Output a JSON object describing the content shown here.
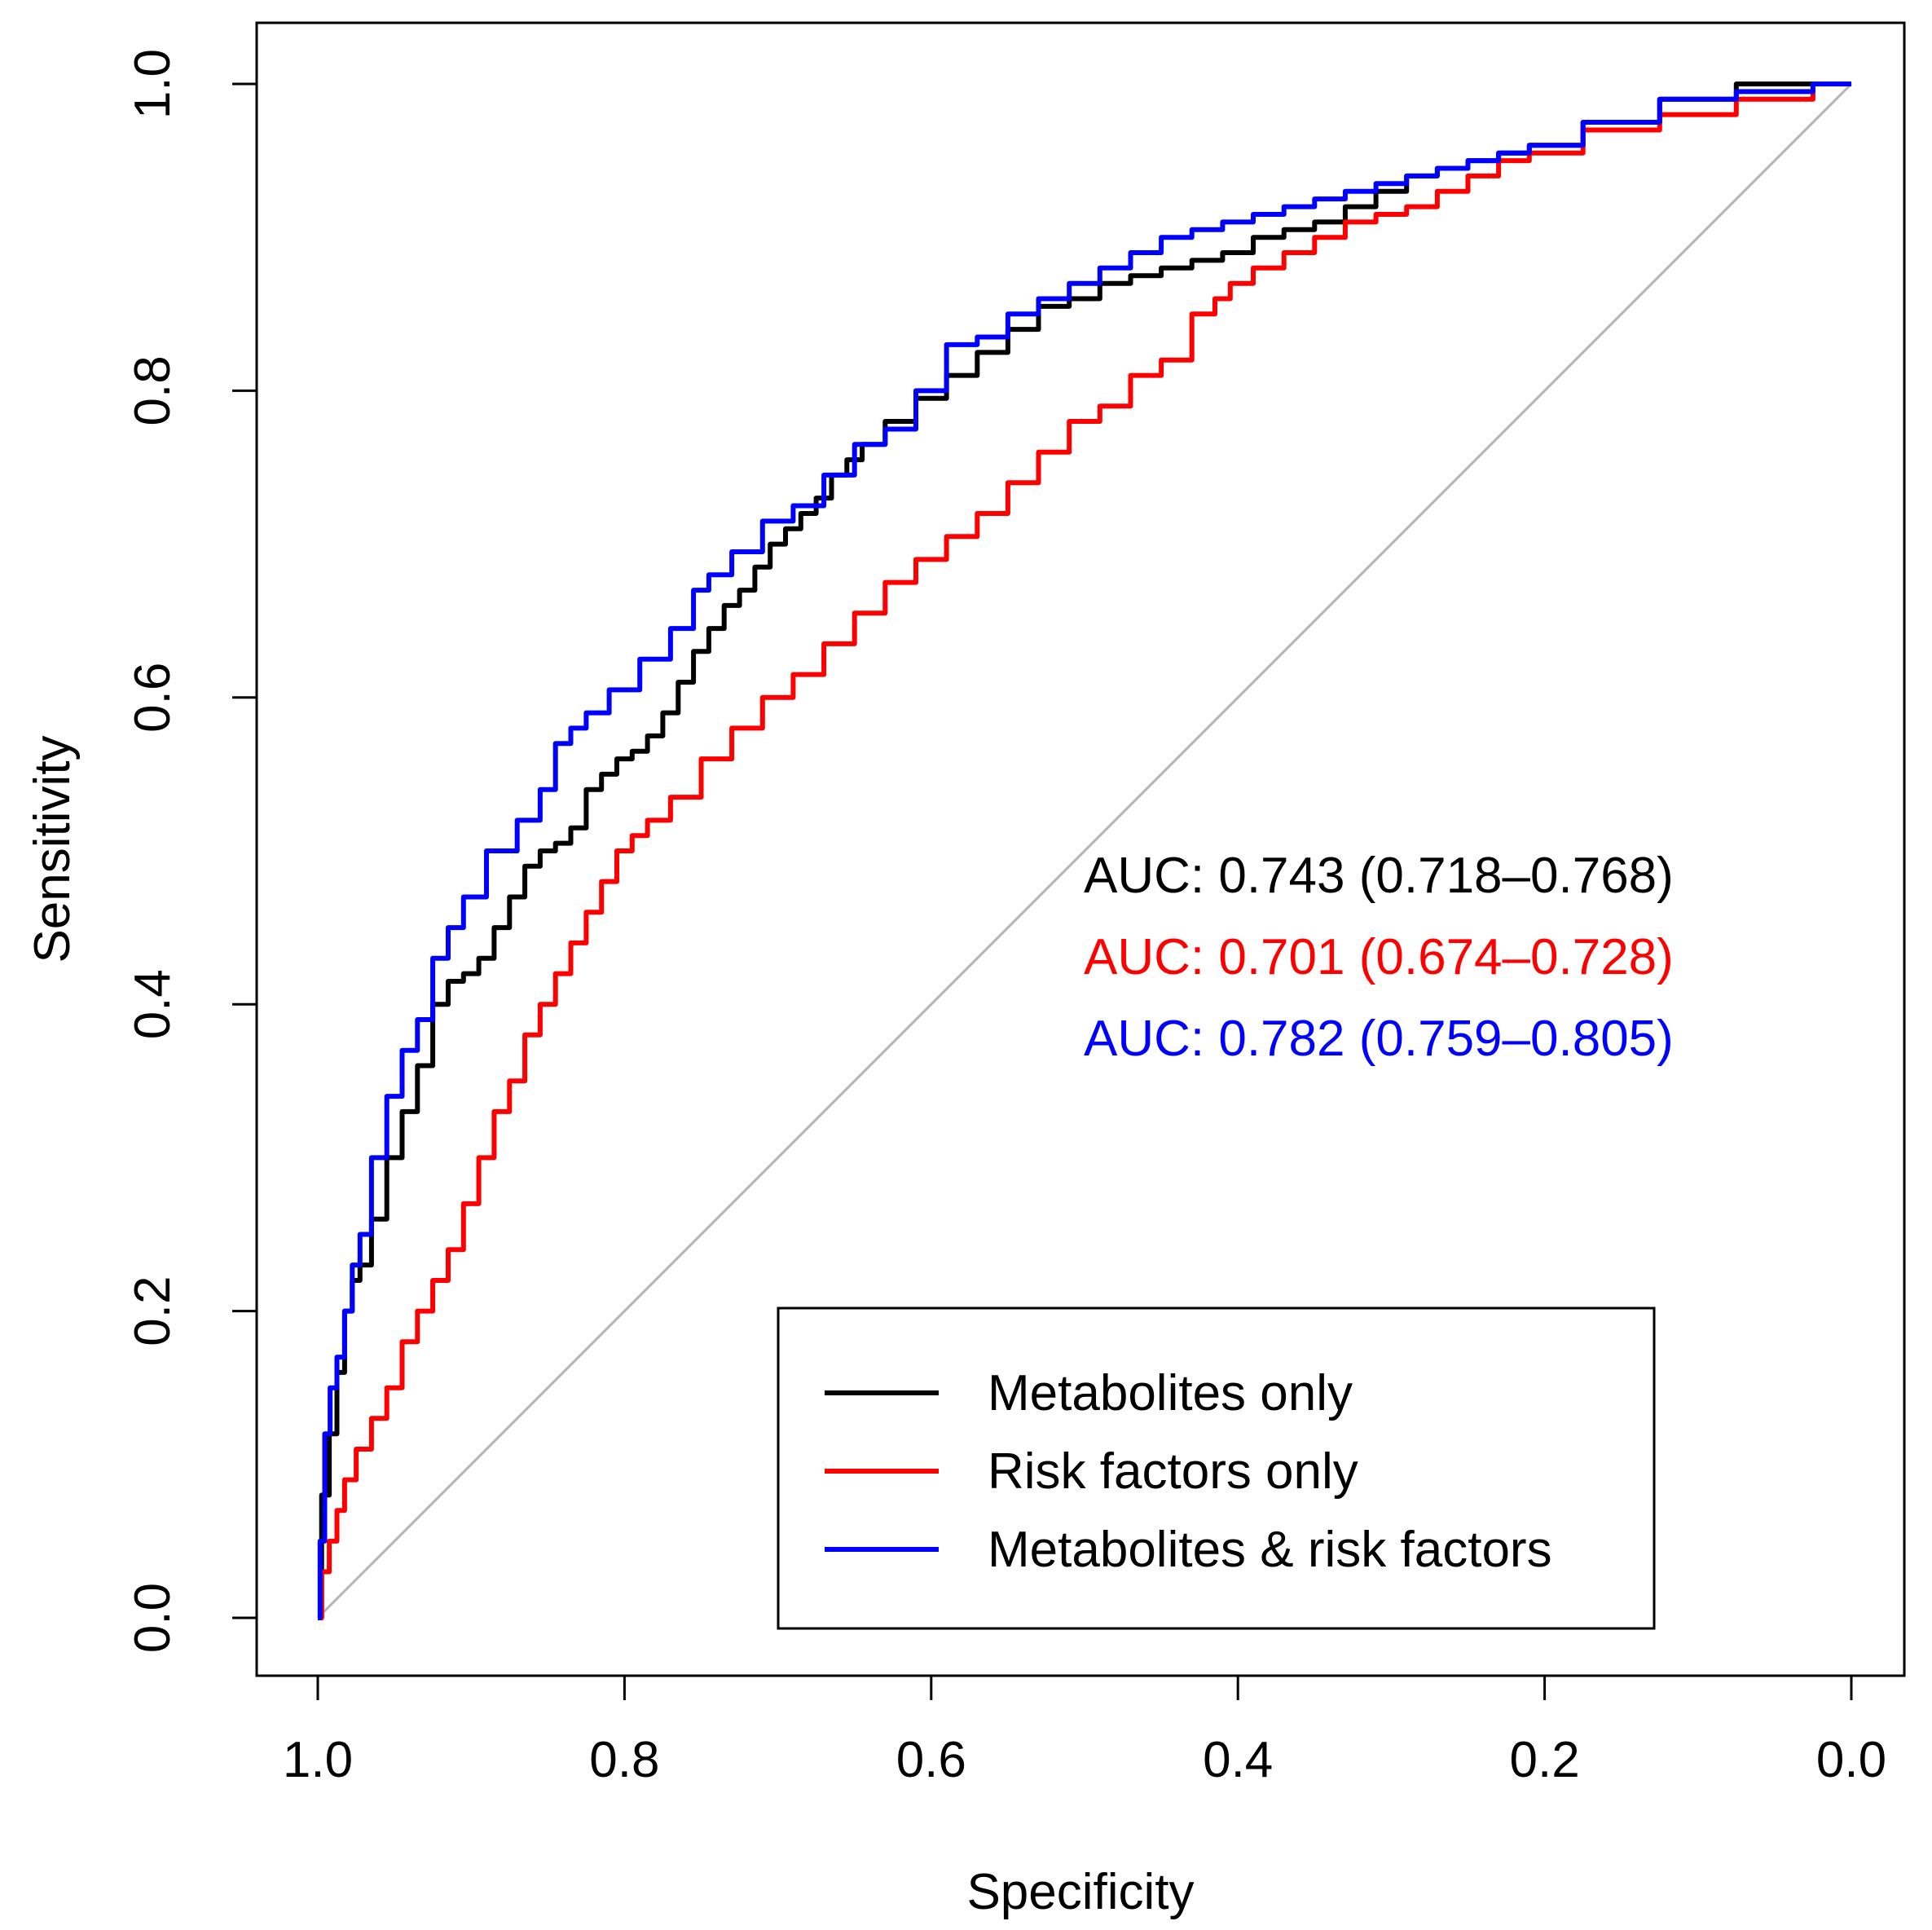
{
  "chart_data": {
    "type": "line",
    "title": "",
    "xlabel": "Specificity",
    "ylabel": "Sensitivity",
    "x_reversed": true,
    "xlim": [
      1.0,
      0.0
    ],
    "ylim": [
      0.0,
      1.0
    ],
    "x_ticks": [
      "1.0",
      "0.8",
      "0.6",
      "0.4",
      "0.2",
      "0.0"
    ],
    "x_tick_values": [
      1.0,
      0.8,
      0.6,
      0.4,
      0.2,
      0.0
    ],
    "y_ticks": [
      "0.0",
      "0.2",
      "0.4",
      "0.6",
      "0.8",
      "1.0"
    ],
    "y_tick_values": [
      0.0,
      0.2,
      0.4,
      0.6,
      0.8,
      1.0
    ],
    "grid": false,
    "legend_position": "bottom-right",
    "reference_line": {
      "from": [
        1.0,
        0.0
      ],
      "to": [
        0.0,
        1.0
      ],
      "color": "#b4b4b4"
    },
    "series": [
      {
        "name": "Metabolites only",
        "color": "#000000",
        "auc_text": "AUC: 0.743 (0.718–0.768)",
        "specificity": [
          1.0,
          0.995,
          0.99,
          0.985,
          0.98,
          0.975,
          0.97,
          0.96,
          0.95,
          0.94,
          0.93,
          0.92,
          0.91,
          0.9,
          0.89,
          0.88,
          0.87,
          0.86,
          0.85,
          0.84,
          0.83,
          0.82,
          0.81,
          0.8,
          0.79,
          0.78,
          0.77,
          0.76,
          0.75,
          0.74,
          0.73,
          0.72,
          0.71,
          0.7,
          0.69,
          0.68,
          0.67,
          0.66,
          0.65,
          0.64,
          0.62,
          0.6,
          0.58,
          0.56,
          0.54,
          0.52,
          0.5,
          0.48,
          0.46,
          0.44,
          0.42,
          0.4,
          0.38,
          0.36,
          0.34,
          0.32,
          0.3,
          0.28,
          0.26,
          0.24,
          0.22,
          0.2,
          0.15,
          0.1,
          0.05,
          0.0
        ],
        "sensitivity": [
          0.0,
          0.08,
          0.12,
          0.16,
          0.2,
          0.22,
          0.23,
          0.26,
          0.3,
          0.33,
          0.36,
          0.4,
          0.415,
          0.42,
          0.43,
          0.45,
          0.47,
          0.49,
          0.5,
          0.505,
          0.515,
          0.54,
          0.55,
          0.56,
          0.565,
          0.575,
          0.59,
          0.61,
          0.63,
          0.645,
          0.66,
          0.67,
          0.685,
          0.7,
          0.71,
          0.72,
          0.73,
          0.745,
          0.755,
          0.765,
          0.78,
          0.795,
          0.81,
          0.825,
          0.84,
          0.855,
          0.86,
          0.87,
          0.875,
          0.88,
          0.885,
          0.89,
          0.9,
          0.905,
          0.91,
          0.92,
          0.93,
          0.94,
          0.945,
          0.95,
          0.955,
          0.96,
          0.975,
          0.99,
          1.0,
          1.0
        ]
      },
      {
        "name": "Risk factors only",
        "color": "#ff0000",
        "auc_text": "AUC: 0.701 (0.674–0.728)",
        "specificity": [
          1.0,
          0.995,
          0.99,
          0.985,
          0.98,
          0.97,
          0.96,
          0.95,
          0.94,
          0.93,
          0.92,
          0.91,
          0.9,
          0.89,
          0.88,
          0.87,
          0.86,
          0.85,
          0.84,
          0.83,
          0.82,
          0.81,
          0.8,
          0.79,
          0.78,
          0.76,
          0.74,
          0.72,
          0.7,
          0.68,
          0.66,
          0.64,
          0.62,
          0.6,
          0.58,
          0.56,
          0.54,
          0.52,
          0.5,
          0.48,
          0.46,
          0.44,
          0.42,
          0.41,
          0.4,
          0.38,
          0.36,
          0.34,
          0.32,
          0.3,
          0.28,
          0.26,
          0.24,
          0.22,
          0.2,
          0.15,
          0.1,
          0.05,
          0.0
        ],
        "sensitivity": [
          0.0,
          0.03,
          0.05,
          0.07,
          0.09,
          0.11,
          0.13,
          0.15,
          0.18,
          0.2,
          0.22,
          0.24,
          0.27,
          0.3,
          0.33,
          0.35,
          0.38,
          0.4,
          0.42,
          0.44,
          0.46,
          0.48,
          0.5,
          0.51,
          0.52,
          0.535,
          0.56,
          0.58,
          0.6,
          0.615,
          0.635,
          0.655,
          0.675,
          0.69,
          0.705,
          0.72,
          0.74,
          0.76,
          0.78,
          0.79,
          0.81,
          0.82,
          0.85,
          0.86,
          0.87,
          0.88,
          0.89,
          0.9,
          0.91,
          0.915,
          0.92,
          0.93,
          0.94,
          0.95,
          0.955,
          0.97,
          0.98,
          0.99,
          1.0
        ]
      },
      {
        "name": "Metabolites & risk factors",
        "color": "#0000ff",
        "auc_text": "AUC: 0.782 (0.759–0.805)",
        "specificity": [
          1.0,
          0.997,
          0.994,
          0.99,
          0.985,
          0.98,
          0.975,
          0.97,
          0.96,
          0.95,
          0.94,
          0.93,
          0.92,
          0.91,
          0.9,
          0.88,
          0.86,
          0.85,
          0.84,
          0.83,
          0.82,
          0.8,
          0.78,
          0.76,
          0.75,
          0.74,
          0.72,
          0.7,
          0.68,
          0.66,
          0.64,
          0.62,
          0.6,
          0.58,
          0.56,
          0.54,
          0.52,
          0.5,
          0.48,
          0.46,
          0.44,
          0.42,
          0.4,
          0.38,
          0.36,
          0.34,
          0.32,
          0.3,
          0.28,
          0.26,
          0.24,
          0.22,
          0.2,
          0.15,
          0.1,
          0.05,
          0.0
        ],
        "sensitivity": [
          0.0,
          0.05,
          0.12,
          0.15,
          0.17,
          0.2,
          0.23,
          0.25,
          0.3,
          0.34,
          0.37,
          0.39,
          0.43,
          0.45,
          0.47,
          0.5,
          0.52,
          0.54,
          0.57,
          0.58,
          0.59,
          0.605,
          0.625,
          0.645,
          0.67,
          0.68,
          0.695,
          0.715,
          0.725,
          0.745,
          0.765,
          0.775,
          0.8,
          0.83,
          0.835,
          0.85,
          0.86,
          0.87,
          0.88,
          0.89,
          0.9,
          0.905,
          0.91,
          0.915,
          0.92,
          0.925,
          0.93,
          0.935,
          0.94,
          0.945,
          0.95,
          0.955,
          0.96,
          0.975,
          0.99,
          0.995,
          1.0
        ]
      }
    ]
  }
}
